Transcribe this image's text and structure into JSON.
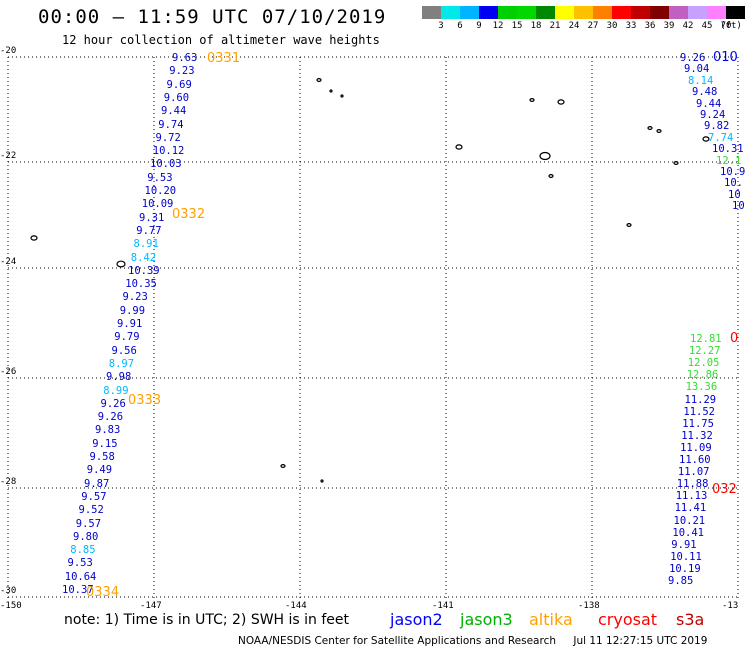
{
  "header": {
    "title": "00:00 — 11:59 UTC 07/10/2019",
    "subtitle": "12 hour collection of altimeter wave heights"
  },
  "legend": {
    "colors": [
      "#808080",
      "#00e8e8",
      "#00b4ff",
      "#0000f0",
      "#00d000",
      "#00d800",
      "#008800",
      "#ffff00",
      "#ffc000",
      "#ff8000",
      "#ff0000",
      "#c00000",
      "#800000",
      "#c060c0",
      "#c8a0ff",
      "#ff80ff",
      "#000000"
    ],
    "labels": [
      "3",
      "6",
      "9",
      "12",
      "15",
      "18",
      "21",
      "24",
      "27",
      "30",
      "33",
      "36",
      "39",
      "42",
      "45",
      "70",
      "(ft)"
    ]
  },
  "axes": {
    "lat_labels": [
      "-20",
      "-22",
      "-24",
      "-26",
      "-28",
      "-30"
    ],
    "lon_labels": [
      "-150",
      "-147",
      "-144",
      "-141",
      "-138",
      "-13"
    ]
  },
  "tracks": {
    "left": {
      "points": [
        "9.63",
        "9.23",
        "9.69",
        "9.60",
        "9.44",
        "9.74",
        "9.72",
        "10.12",
        "10.03",
        "9.53",
        "10.20",
        "10.09",
        "9.31",
        "9.77",
        "8.91",
        "8.42",
        "10.39",
        "10.35",
        "9.23",
        "9.99",
        "9.91",
        "9.79",
        "9.56",
        "8.97",
        "9.98",
        "8.99",
        "9.26",
        "9.26",
        "9.83",
        "9.15",
        "9.58",
        "9.49",
        "9.87",
        "9.57",
        "9.52",
        "9.57",
        "9.80",
        "8.85",
        "9.53",
        "10.64",
        "10.37"
      ],
      "pass_labels": [
        "0331",
        "0332",
        "0333",
        "0334"
      ]
    },
    "right_top": {
      "points": [
        "9.26",
        "9.04",
        "8.14",
        "9.48",
        "9.44",
        "9.24",
        "9.82",
        "7.74",
        "10.31",
        "12.1",
        "10.9",
        "10.",
        "10",
        "10"
      ],
      "pass_label": "010"
    },
    "right_bottom": {
      "points": [
        "12.81",
        "12.27",
        "12.05",
        "12.86",
        "13.36",
        "11.29",
        "11.52",
        "11.75",
        "11.32",
        "11.09",
        "11.60",
        "11.07",
        "11.88",
        "11.13",
        "11.41",
        "10.21",
        "10.41",
        "9.91",
        "10.11",
        "10.19",
        "9.85"
      ],
      "pass_labels": [
        "0",
        "032"
      ]
    }
  },
  "footer": {
    "note": "note: 1) Time is in UTC; 2) SWH is in feet",
    "satellites": [
      {
        "name": "jason2",
        "color": "#0000ff"
      },
      {
        "name": "jason3",
        "color": "#00b000"
      },
      {
        "name": "altika",
        "color": "#ffa000"
      },
      {
        "name": "cryosat",
        "color": "#ff0000"
      },
      {
        "name": "s3a",
        "color": "#c00000"
      }
    ],
    "credit": "NOAA/NESDIS Center for Satellite Applications and Research",
    "timestamp": "Jul 11 12:27:15 UTC 2019"
  }
}
